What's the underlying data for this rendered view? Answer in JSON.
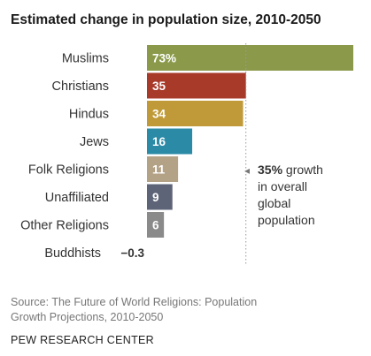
{
  "chart_data": {
    "type": "bar",
    "orientation": "horizontal",
    "title": "Estimated change in population size, 2010-2050",
    "categories": [
      "Muslims",
      "Christians",
      "Hindus",
      "Jews",
      "Folk Religions",
      "Unaffiliated",
      "Other Religions",
      "Buddhists"
    ],
    "values": [
      73,
      35,
      34,
      16,
      11,
      9,
      6,
      -0.3
    ],
    "value_labels": [
      "73%",
      "35",
      "34",
      "16",
      "11",
      "9",
      "6",
      "−0.3"
    ],
    "colors": [
      "#8a9a4a",
      "#a83a2a",
      "#c09a38",
      "#2b8aa6",
      "#b3a286",
      "#5e6478",
      "#8a8a8a",
      "#888888"
    ],
    "reference_line": {
      "value": 35,
      "style": "dotted"
    },
    "annotation": {
      "arrow": "◂",
      "bold": "35%",
      "lines": [
        " growth",
        "in overall",
        "global",
        "population"
      ]
    },
    "xlim": [
      0,
      73
    ]
  },
  "footer": {
    "source": "Source: The Future of World Religions: Population Growth Projections, 2010-2050",
    "credit": "PEW RESEARCH CENTER"
  }
}
